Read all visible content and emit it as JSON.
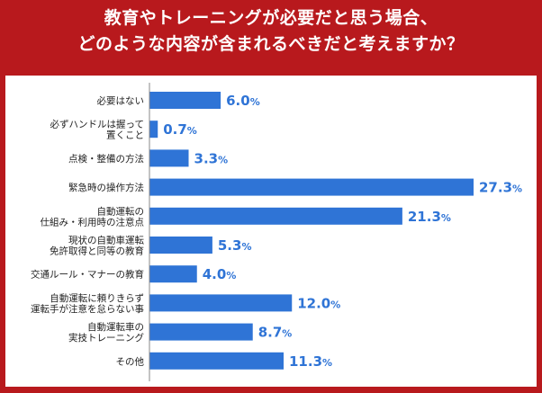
{
  "title_lines": [
    "教育やトレーニングが必要だと思う場合、",
    "どのような内容が含まれるべきだと考えますか？"
  ],
  "chart_data": {
    "type": "bar",
    "orientation": "horizontal",
    "title": "教育やトレーニングが必要だと思う場合、どのような内容が含まれるべきだと考えますか？",
    "categories": [
      "必要はない",
      "必ずハンドルは握って置くこと",
      "点検・整備の方法",
      "緊急時の操作方法",
      "自動運転の仕組み・利用時の注意点",
      "現状の自動車運転免許取得と同等の教育",
      "交通ルール・マナーの教育",
      "自動運転に頼りきらず運転手が注意を怠らない事",
      "自動運転車の実技トレーニング",
      "その他"
    ],
    "category_lines": [
      [
        "必要はない"
      ],
      [
        "必ずハンドルは握って",
        "置くこと"
      ],
      [
        "点検・整備の方法"
      ],
      [
        "緊急時の操作方法"
      ],
      [
        "自動運転の",
        "仕組み・利用時の注意点"
      ],
      [
        "現状の自動車運転",
        "免許取得と同等の教育"
      ],
      [
        "交通ルール・マナーの教育"
      ],
      [
        "自動運転に頼りきらず",
        "運転手が注意を怠らない事"
      ],
      [
        "自動運転車の",
        "実技トレーニング"
      ],
      [
        "その他"
      ]
    ],
    "values": [
      6.0,
      0.7,
      3.3,
      27.3,
      21.3,
      5.3,
      4.0,
      12.0,
      8.7,
      11.3
    ],
    "value_labels": [
      "6.0",
      "0.7",
      "3.3",
      "27.3",
      "21.3",
      "5.3",
      "4.0",
      "12.0",
      "8.7",
      "11.3"
    ],
    "unit": "%",
    "xlim": [
      0,
      27.3
    ],
    "grid": false,
    "bar_color": "#2f74d6"
  },
  "colors": {
    "background": "#b8191d",
    "panel": "#ffffff",
    "bar": "#2f74d6",
    "axis": "#888888"
  }
}
